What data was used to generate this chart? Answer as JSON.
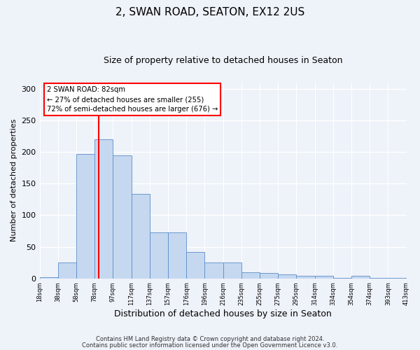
{
  "title": "2, SWAN ROAD, SEATON, EX12 2US",
  "subtitle": "Size of property relative to detached houses in Seaton",
  "xlabel": "Distribution of detached houses by size in Seaton",
  "ylabel": "Number of detached properties",
  "bins": [
    "18sqm",
    "38sqm",
    "58sqm",
    "78sqm",
    "97sqm",
    "117sqm",
    "137sqm",
    "157sqm",
    "176sqm",
    "196sqm",
    "216sqm",
    "235sqm",
    "255sqm",
    "275sqm",
    "295sqm",
    "314sqm",
    "334sqm",
    "354sqm",
    "374sqm",
    "393sqm",
    "413sqm"
  ],
  "bar_vals": [
    2,
    25,
    197,
    220,
    195,
    134,
    73,
    73,
    42,
    25,
    25,
    10,
    8,
    6,
    4,
    4,
    1,
    4,
    1,
    1
  ],
  "bar_color": "#c5d8f0",
  "bar_edge_color": "#5b8fc9",
  "vline_color": "red",
  "annotation_line1": "2 SWAN ROAD: 82sqm",
  "annotation_line2": "← 27% of detached houses are smaller (255)",
  "annotation_line3": "72% of semi-detached houses are larger (676) →",
  "annotation_box_color": "white",
  "annotation_box_edge": "red",
  "ylim": [
    0,
    310
  ],
  "yticks": [
    0,
    50,
    100,
    150,
    200,
    250,
    300
  ],
  "footer1": "Contains HM Land Registry data © Crown copyright and database right 2024.",
  "footer2": "Contains public sector information licensed under the Open Government Licence v3.0.",
  "bg_color": "#eef2f9",
  "grid_color": "white",
  "title_fontsize": 11,
  "subtitle_fontsize": 9,
  "ylabel_fontsize": 8,
  "xlabel_fontsize": 9
}
